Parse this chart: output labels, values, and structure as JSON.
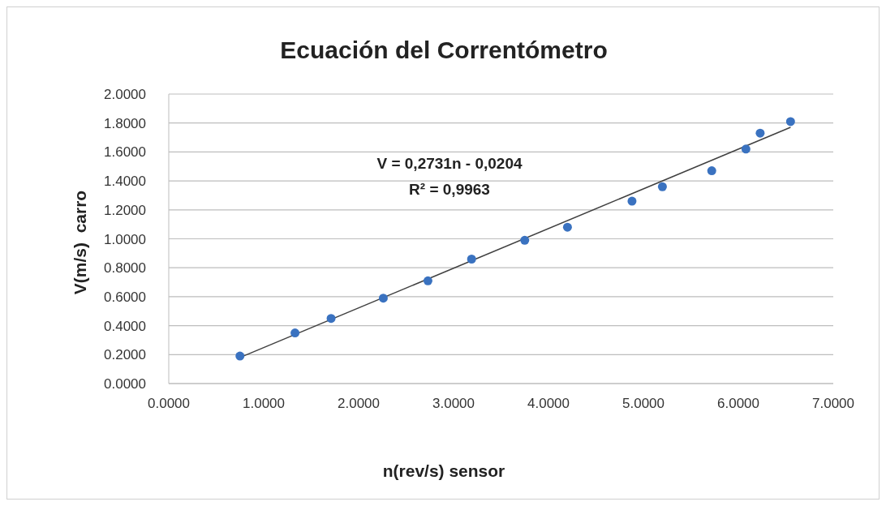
{
  "chart_data": {
    "type": "scatter",
    "title": "Ecuación del Correntómetro",
    "xlabel": "n(rev/s) sensor",
    "ylabel": "V(m/s)  carro",
    "annotations": [
      "V = 0,2731n - 0,0204",
      "R² = 0,9963"
    ],
    "series": [
      {
        "color": "#3a72c0",
        "x": [
          0.75,
          1.33,
          1.71,
          2.26,
          2.73,
          3.19,
          3.75,
          4.2,
          4.88,
          5.2,
          5.72,
          6.08,
          6.23,
          6.55
        ],
        "values": [
          0.19,
          0.35,
          0.45,
          0.59,
          0.71,
          0.86,
          0.99,
          1.08,
          1.26,
          1.36,
          1.47,
          1.62,
          1.73,
          1.81
        ]
      },
      {
        "type": "line",
        "color": "#404040",
        "x": [
          0.75,
          6.55
        ],
        "values": [
          0.18,
          1.77
        ],
        "marker": "none"
      }
    ],
    "xlim": [
      0,
      7
    ],
    "xticks": [
      {
        "value": 0,
        "label": "0.0000"
      },
      {
        "value": 1,
        "label": "1.0000"
      },
      {
        "value": 2,
        "label": "2.0000"
      },
      {
        "value": 3,
        "label": "3.0000"
      },
      {
        "value": 4,
        "label": "4.0000"
      },
      {
        "value": 5,
        "label": "5.0000"
      },
      {
        "value": 6,
        "label": "6.0000"
      },
      {
        "value": 7,
        "label": "7.0000"
      }
    ],
    "ylim": [
      0,
      2
    ],
    "yticks": [
      {
        "value": 0,
        "label": "0.0000"
      },
      {
        "value": 0.2,
        "label": "0.2000"
      },
      {
        "value": 0.4,
        "label": "0.4000"
      },
      {
        "value": 0.6,
        "label": "0.6000"
      },
      {
        "value": 0.8,
        "label": "0.8000"
      },
      {
        "value": 1,
        "label": "1.0000"
      },
      {
        "value": 1.2,
        "label": "1.2000"
      },
      {
        "value": 1.4,
        "label": "1.4000"
      },
      {
        "value": 1.6,
        "label": "1.6000"
      },
      {
        "value": 1.8,
        "label": "1.8000"
      },
      {
        "value": 2,
        "label": "2.0000"
      }
    ],
    "grid": "y",
    "legend": false,
    "marker": "circle"
  }
}
